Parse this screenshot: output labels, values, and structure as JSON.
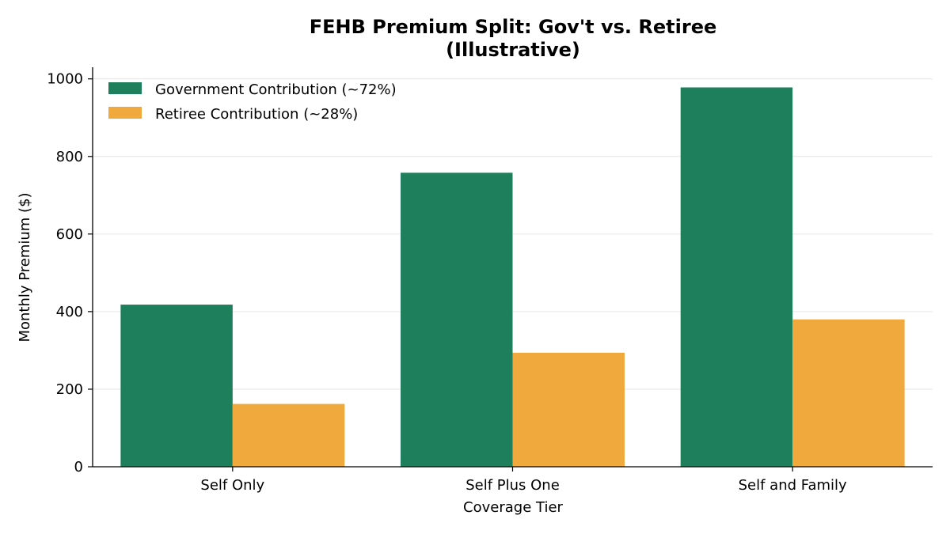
{
  "chart_data": {
    "type": "bar",
    "title": "FEHB Premium Split: Gov't vs. Retiree",
    "subtitle": "(Illustrative)",
    "xlabel": "Coverage Tier",
    "ylabel": "Monthly Premium ($)",
    "categories": [
      "Self Only",
      "Self Plus One",
      "Self and Family"
    ],
    "series": [
      {
        "name": "Government Contribution (~72%)",
        "color": "#1e7f5c",
        "values": [
          418,
          758,
          978
        ]
      },
      {
        "name": "Retiree Contribution (~28%)",
        "color": "#f0a93c",
        "values": [
          162,
          294,
          380
        ]
      }
    ],
    "ylim": [
      0,
      1030
    ],
    "yticks": [
      0,
      200,
      400,
      600,
      800,
      1000
    ],
    "grid": "horizontal",
    "legend_position": "top-left"
  }
}
